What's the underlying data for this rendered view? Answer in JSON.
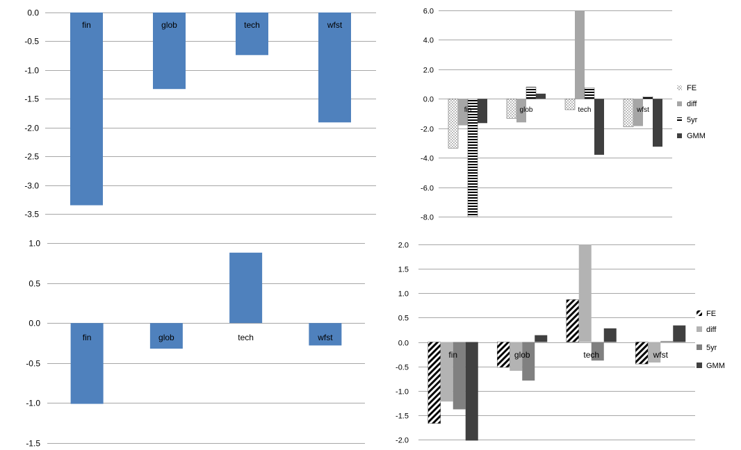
{
  "chart_data": [
    {
      "type": "bar",
      "title": "",
      "categories": [
        "fin",
        "glob",
        "tech",
        "wfst"
      ],
      "series": [
        {
          "values": [
            -3.35,
            -1.33,
            -0.74,
            -1.91
          ]
        }
      ],
      "ylim": [
        -3.5,
        0.0
      ],
      "yticks": [
        "0.0",
        "-0.5",
        "-1.0",
        "-1.5",
        "-2.0",
        "-2.5",
        "-3.0",
        "-3.5"
      ],
      "grid": true,
      "legend": "none",
      "colors": {
        "bar": "#4f81bd"
      }
    },
    {
      "type": "bar",
      "title": "",
      "categories": [
        "fin",
        "glob",
        "tech",
        "wfst"
      ],
      "series": [
        {
          "name": "FE",
          "values": [
            -3.35,
            -1.33,
            -0.74,
            -1.91
          ]
        },
        {
          "name": "diff",
          "values": [
            -1.8,
            -1.6,
            6.0,
            -1.85
          ]
        },
        {
          "name": "5yr",
          "values": [
            -8.0,
            0.8,
            0.75,
            0.15
          ]
        },
        {
          "name": "GMM",
          "values": [
            -1.65,
            0.35,
            -3.8,
            -3.25
          ]
        }
      ],
      "ylim": [
        -8.0,
        6.0
      ],
      "yticks": [
        "6.0",
        "4.0",
        "2.0",
        "0.0",
        "-2.0",
        "-4.0",
        "-6.0",
        "-8.0"
      ],
      "grid": true,
      "legend": "right",
      "legend_labels": [
        "FE",
        "diff",
        "5yr",
        "GMM"
      ],
      "colors": {
        "FE": "#b8b8b8",
        "diff": "#a6a6a6",
        "5yr": "#000000",
        "GMM": "#3f3f3f"
      }
    },
    {
      "type": "bar",
      "title": "",
      "categories": [
        "fin",
        "glob",
        "tech",
        "wfst"
      ],
      "series": [
        {
          "values": [
            -1.01,
            -0.32,
            0.88,
            -0.28
          ]
        }
      ],
      "ylim": [
        -1.5,
        1.0
      ],
      "yticks": [
        "1.0",
        "0.5",
        "0.0",
        "-0.5",
        "-1.0",
        "-1.5"
      ],
      "grid": true,
      "legend": "none",
      "colors": {
        "bar": "#4f81bd"
      }
    },
    {
      "type": "bar",
      "title": "",
      "categories": [
        "fin",
        "glob",
        "tech",
        "wfst"
      ],
      "series": [
        {
          "name": "FE",
          "values": [
            -1.67,
            -0.52,
            0.87,
            -0.45
          ]
        },
        {
          "name": "diff",
          "values": [
            -1.22,
            -0.59,
            2.0,
            -0.42
          ]
        },
        {
          "name": "5yr",
          "values": [
            -1.38,
            -0.79,
            -0.38,
            0.02
          ]
        },
        {
          "name": "GMM",
          "values": [
            -2.02,
            0.14,
            0.28,
            0.34
          ]
        }
      ],
      "ylim": [
        -2.0,
        2.0
      ],
      "yticks": [
        "2.0",
        "1.5",
        "1.0",
        "0.5",
        "0.0",
        "-0.5",
        "-1.0",
        "-1.5",
        "-2.0"
      ],
      "grid": true,
      "legend": "right",
      "legend_labels": [
        "FE",
        "diff",
        "5yr",
        "GMM"
      ],
      "colors": {
        "FE": "#000000",
        "diff": "#b3b3b3",
        "5yr": "#808080",
        "GMM": "#404040"
      }
    }
  ]
}
